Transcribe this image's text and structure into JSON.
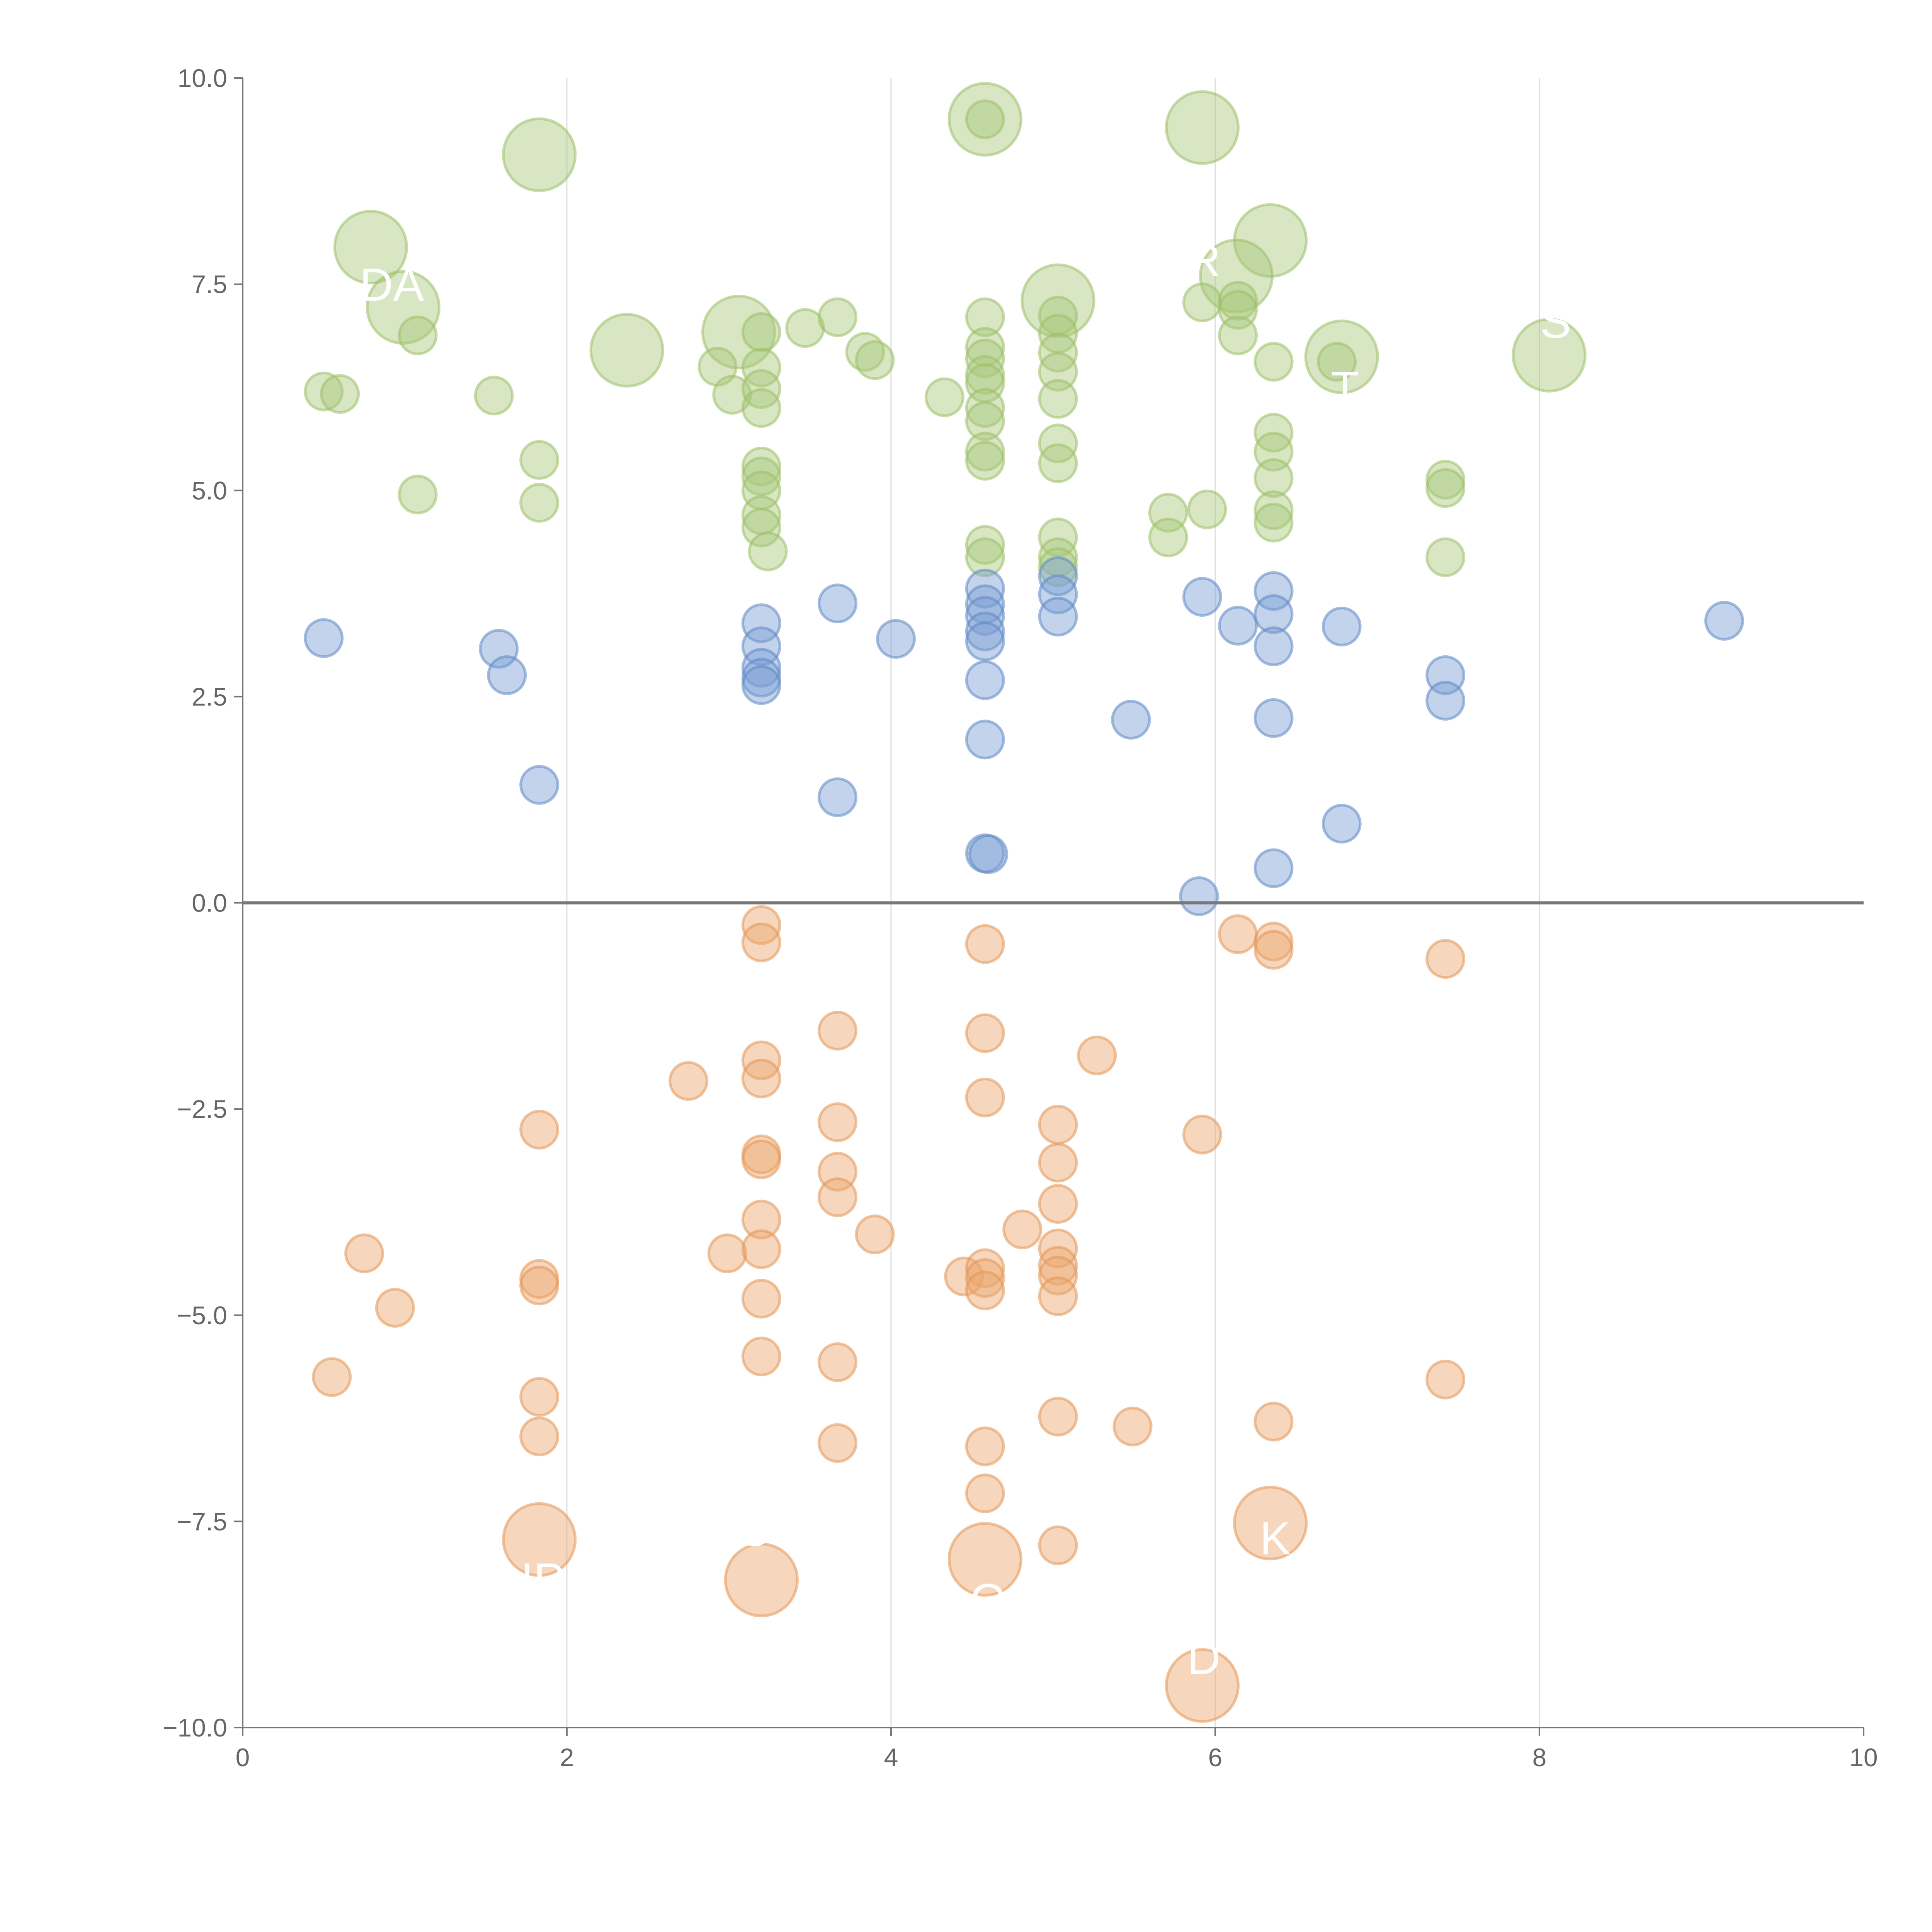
{
  "chart_data": {
    "type": "scatter",
    "title": "",
    "xlabel": "",
    "ylabel": "",
    "xlim": [
      0,
      10
    ],
    "ylim": [
      -10,
      10
    ],
    "grid": "vertical",
    "x_ticks": [
      "0",
      "2",
      "4",
      "6",
      "8",
      "10"
    ],
    "y_ticks": [
      "10.0",
      "7.5",
      "5.0",
      "2.5",
      "0.0",
      "−2.5",
      "−5.0",
      "−7.5",
      "−10.0"
    ],
    "x_tick_values": [
      0,
      2,
      4,
      6,
      8,
      10
    ],
    "y_tick_values": [
      10,
      7.5,
      5,
      2.5,
      0,
      -2.5,
      -5,
      -7.5,
      -10
    ],
    "reference_line_y": 0,
    "series": [
      {
        "name": "green",
        "color": "#a9c77a",
        "stroke": "#9dbf68",
        "points": [
          [
            0.79,
            7.95,
            4
          ],
          [
            0.99,
            7.22,
            4
          ],
          [
            1.83,
            9.07,
            4
          ],
          [
            2.37,
            6.7,
            4
          ],
          [
            3.06,
            6.92,
            4
          ],
          [
            4.58,
            9.5,
            4
          ],
          [
            5.03,
            7.3,
            4
          ],
          [
            5.92,
            9.4,
            4
          ],
          [
            6.34,
            8.03,
            4
          ],
          [
            6.13,
            7.6,
            4
          ],
          [
            6.78,
            6.62,
            4
          ],
          [
            8.06,
            6.64,
            4
          ],
          [
            0.5,
            6.2,
            1
          ],
          [
            0.6,
            6.17,
            1
          ],
          [
            1.08,
            6.88,
            1
          ],
          [
            1.08,
            4.95,
            1
          ],
          [
            1.55,
            6.15,
            1
          ],
          [
            1.83,
            5.37,
            1
          ],
          [
            1.83,
            4.85,
            1
          ],
          [
            2.93,
            6.5,
            1
          ],
          [
            3.02,
            6.16,
            1
          ],
          [
            3.2,
            6.92,
            1
          ],
          [
            3.2,
            6.49,
            1
          ],
          [
            3.2,
            6.23,
            1
          ],
          [
            3.2,
            6.0,
            1
          ],
          [
            3.2,
            5.29,
            1
          ],
          [
            3.2,
            5.17,
            1
          ],
          [
            3.2,
            5.0,
            1
          ],
          [
            3.2,
            4.7,
            1
          ],
          [
            3.2,
            4.55,
            1
          ],
          [
            3.24,
            4.26,
            1
          ],
          [
            3.47,
            6.97,
            1
          ],
          [
            3.67,
            7.1,
            1
          ],
          [
            3.84,
            6.68,
            1
          ],
          [
            3.9,
            6.58,
            1
          ],
          [
            4.33,
            6.13,
            1
          ],
          [
            4.58,
            7.1,
            1
          ],
          [
            4.58,
            6.74,
            1
          ],
          [
            4.58,
            6.6,
            1
          ],
          [
            4.58,
            6.4,
            1
          ],
          [
            4.58,
            6.3,
            1
          ],
          [
            4.58,
            6.0,
            1
          ],
          [
            4.58,
            5.84,
            1
          ],
          [
            4.58,
            5.47,
            1
          ],
          [
            4.58,
            5.36,
            1
          ],
          [
            4.58,
            4.34,
            1
          ],
          [
            4.58,
            4.19,
            1
          ],
          [
            4.58,
            9.5,
            1
          ],
          [
            5.03,
            7.12,
            1
          ],
          [
            5.03,
            6.9,
            1
          ],
          [
            5.03,
            6.67,
            1
          ],
          [
            5.03,
            6.44,
            1
          ],
          [
            5.03,
            6.11,
            1
          ],
          [
            5.03,
            5.57,
            1
          ],
          [
            5.03,
            5.33,
            1
          ],
          [
            5.03,
            4.43,
            1
          ],
          [
            5.03,
            4.19,
            1
          ],
          [
            5.03,
            4.07,
            1
          ],
          [
            5.71,
            4.73,
            1
          ],
          [
            5.71,
            4.43,
            1
          ],
          [
            5.95,
            4.77,
            1
          ],
          [
            5.92,
            7.28,
            1
          ],
          [
            6.14,
            7.3,
            1
          ],
          [
            6.14,
            7.19,
            1
          ],
          [
            6.14,
            6.88,
            1
          ],
          [
            6.36,
            6.56,
            1
          ],
          [
            6.36,
            5.7,
            1
          ],
          [
            6.36,
            5.47,
            1
          ],
          [
            6.36,
            5.15,
            1
          ],
          [
            6.36,
            4.76,
            1
          ],
          [
            6.36,
            4.61,
            1
          ],
          [
            6.75,
            6.56,
            1
          ],
          [
            7.42,
            5.13,
            1
          ],
          [
            7.42,
            5.03,
            1
          ],
          [
            7.42,
            4.19,
            1
          ]
        ]
      },
      {
        "name": "blue",
        "color": "#7a9ed3",
        "stroke": "#5f88c6",
        "points": [
          [
            0.5,
            3.21,
            1
          ],
          [
            1.58,
            3.08,
            1
          ],
          [
            1.63,
            2.76,
            1
          ],
          [
            1.83,
            1.43,
            1
          ],
          [
            3.2,
            3.39,
            1
          ],
          [
            3.2,
            3.11,
            1
          ],
          [
            3.2,
            2.85,
            1
          ],
          [
            3.2,
            2.73,
            1
          ],
          [
            3.2,
            2.64,
            1
          ],
          [
            3.67,
            3.63,
            1
          ],
          [
            3.67,
            1.28,
            1
          ],
          [
            4.03,
            3.2,
            1
          ],
          [
            4.58,
            3.81,
            1
          ],
          [
            4.58,
            3.62,
            1
          ],
          [
            4.58,
            3.48,
            1
          ],
          [
            4.58,
            3.29,
            1
          ],
          [
            4.58,
            3.17,
            1
          ],
          [
            4.58,
            2.7,
            1
          ],
          [
            4.58,
            1.98,
            1
          ],
          [
            4.58,
            0.6,
            1
          ],
          [
            4.6,
            0.59,
            1
          ],
          [
            5.03,
            3.96,
            1
          ],
          [
            5.03,
            3.74,
            1
          ],
          [
            5.03,
            3.47,
            1
          ],
          [
            5.48,
            2.22,
            1
          ],
          [
            5.92,
            3.71,
            1
          ],
          [
            5.9,
            0.08,
            1
          ],
          [
            6.14,
            3.36,
            1
          ],
          [
            6.36,
            3.78,
            1
          ],
          [
            6.36,
            3.5,
            1
          ],
          [
            6.36,
            3.11,
            1
          ],
          [
            6.36,
            2.24,
            1
          ],
          [
            6.36,
            0.42,
            1
          ],
          [
            6.78,
            3.35,
            1
          ],
          [
            6.78,
            0.96,
            1
          ],
          [
            7.42,
            2.76,
            1
          ],
          [
            7.42,
            2.45,
            1
          ],
          [
            9.14,
            3.42,
            1
          ]
        ]
      },
      {
        "name": "orange",
        "color": "#eca66c",
        "stroke": "#e39556",
        "points": [
          [
            1.83,
            -7.72,
            4
          ],
          [
            3.2,
            -8.21,
            4
          ],
          [
            4.58,
            -7.96,
            4
          ],
          [
            6.34,
            -7.52,
            4
          ],
          [
            5.92,
            -9.49,
            4
          ],
          [
            0.55,
            -5.75,
            1
          ],
          [
            0.75,
            -4.25,
            1
          ],
          [
            0.94,
            -4.91,
            1
          ],
          [
            1.83,
            -2.75,
            1
          ],
          [
            1.83,
            -4.56,
            1
          ],
          [
            1.83,
            -4.64,
            1
          ],
          [
            1.83,
            -5.99,
            1
          ],
          [
            1.83,
            -6.47,
            1
          ],
          [
            2.75,
            -2.16,
            1
          ],
          [
            2.99,
            -4.25,
            1
          ],
          [
            3.2,
            -0.27,
            1
          ],
          [
            3.2,
            -0.48,
            1
          ],
          [
            3.2,
            -1.91,
            1
          ],
          [
            3.2,
            -2.13,
            1
          ],
          [
            3.2,
            -3.05,
            1
          ],
          [
            3.2,
            -3.11,
            1
          ],
          [
            3.2,
            -3.84,
            1
          ],
          [
            3.2,
            -4.2,
            1
          ],
          [
            3.2,
            -4.8,
            1
          ],
          [
            3.2,
            -5.5,
            1
          ],
          [
            3.67,
            -1.55,
            1
          ],
          [
            3.67,
            -2.66,
            1
          ],
          [
            3.67,
            -3.26,
            1
          ],
          [
            3.67,
            -3.57,
            1
          ],
          [
            3.67,
            -5.57,
            1
          ],
          [
            3.67,
            -6.55,
            1
          ],
          [
            3.9,
            -4.02,
            1
          ],
          [
            4.45,
            -4.53,
            1
          ],
          [
            4.58,
            -0.5,
            1
          ],
          [
            4.58,
            -1.58,
            1
          ],
          [
            4.58,
            -2.36,
            1
          ],
          [
            4.58,
            -4.43,
            1
          ],
          [
            4.58,
            -4.55,
            1
          ],
          [
            4.58,
            -4.7,
            1
          ],
          [
            4.58,
            -6.59,
            1
          ],
          [
            4.58,
            -7.16,
            1
          ],
          [
            4.81,
            -3.96,
            1
          ],
          [
            5.03,
            -2.69,
            1
          ],
          [
            5.03,
            -3.15,
            1
          ],
          [
            5.03,
            -3.65,
            1
          ],
          [
            5.03,
            -4.19,
            1
          ],
          [
            5.03,
            -4.4,
            1
          ],
          [
            5.03,
            -4.52,
            1
          ],
          [
            5.03,
            -4.77,
            1
          ],
          [
            5.03,
            -6.23,
            1
          ],
          [
            5.03,
            -7.79,
            1
          ],
          [
            5.27,
            -1.85,
            1
          ],
          [
            5.49,
            -6.35,
            1
          ],
          [
            5.92,
            -2.81,
            1
          ],
          [
            6.14,
            -0.38,
            1
          ],
          [
            6.36,
            -0.47,
            1
          ],
          [
            6.36,
            -0.57,
            1
          ],
          [
            6.36,
            -6.29,
            1
          ],
          [
            7.42,
            -0.68,
            1
          ],
          [
            7.42,
            -5.78,
            1
          ]
        ]
      }
    ],
    "annotations": [
      {
        "text": "DA",
        "x": 0.92,
        "y": 7.45
      },
      {
        "text": "R",
        "x": 5.93,
        "y": 7.75
      },
      {
        "text": "S",
        "x": 8.1,
        "y": 7.0
      },
      {
        "text": "T",
        "x": 6.8,
        "y": 6.2
      },
      {
        "text": "IP",
        "x": 1.85,
        "y": -8.25
      },
      {
        "text": "C",
        "x": 3.15,
        "y": -7.65
      },
      {
        "text": "O",
        "x": 4.6,
        "y": -8.5
      },
      {
        "text": "K",
        "x": 6.37,
        "y": -7.75
      },
      {
        "text": "D",
        "x": 5.93,
        "y": -9.2
      }
    ]
  }
}
